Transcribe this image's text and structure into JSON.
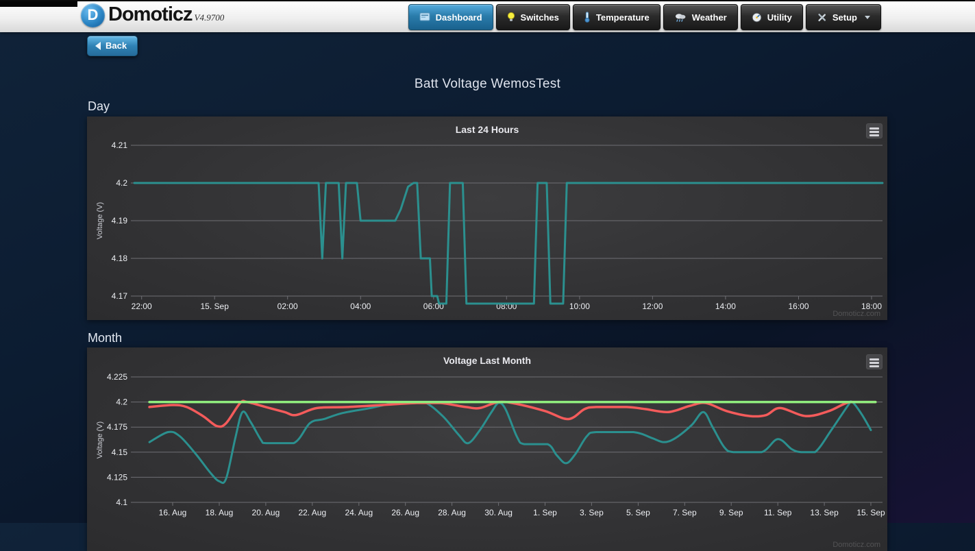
{
  "topbar": {
    "brand": {
      "name": "Domoticz",
      "version": "V4.9700",
      "logo_icon": "domoticz-logo-icon",
      "logo_letter": "D"
    },
    "nav": [
      {
        "label": "Dashboard",
        "icon": "dashboard-icon",
        "active": true
      },
      {
        "label": "Switches",
        "icon": "lightbulb-icon",
        "active": false
      },
      {
        "label": "Temperature",
        "icon": "thermometer-icon",
        "active": false
      },
      {
        "label": "Weather",
        "icon": "rain-cloud-icon",
        "active": false
      },
      {
        "label": "Utility",
        "icon": "gauge-icon",
        "active": false
      },
      {
        "label": "Setup",
        "icon": "tools-icon",
        "active": false,
        "has_dropdown": true,
        "dropdown_icon": "chevron-down-icon"
      }
    ]
  },
  "back_button": {
    "label": "Back",
    "icon": "back-arrow-icon"
  },
  "page_title": "Batt Voltage WemosTest",
  "sections": {
    "day": "Day",
    "month": "Month"
  },
  "colors": {
    "active_tab_blue": "#2a7cab",
    "back_button_blue": "#2f82b4",
    "panel_background": "#323234",
    "gridline": "#6f6f74",
    "teal_series": "#2b908f",
    "red_series": "#f45b5b",
    "green_series": "#90ee7e",
    "page_background_top": "#102339",
    "page_background_bottom": "#171234"
  },
  "chart_data": [
    {
      "id": "day",
      "type": "line",
      "title": "Last 24 Hours",
      "ylabel": "Voltage (V)",
      "watermark": "Domoticz.com",
      "menu_icon": "hamburger-menu-icon",
      "x_unit": "hours (14 Sep 22:00 through 15 Sep 18:00)",
      "xlim": [
        21.8,
        42.3
      ],
      "ylim": [
        4.17,
        4.21
      ],
      "y_ticks": [
        {
          "v": 4.21,
          "label": "4.21"
        },
        {
          "v": 4.2,
          "label": "4.2"
        },
        {
          "v": 4.19,
          "label": "4.19"
        },
        {
          "v": 4.18,
          "label": "4.18"
        },
        {
          "v": 4.17,
          "label": "4.17"
        }
      ],
      "x_ticks": [
        {
          "v": 22,
          "label": "22:00"
        },
        {
          "v": 24,
          "label": "15. Sep"
        },
        {
          "v": 26,
          "label": "02:00"
        },
        {
          "v": 28,
          "label": "04:00"
        },
        {
          "v": 30,
          "label": "06:00"
        },
        {
          "v": 32,
          "label": "08:00"
        },
        {
          "v": 34,
          "label": "10:00"
        },
        {
          "v": 36,
          "label": "12:00"
        },
        {
          "v": 38,
          "label": "14:00"
        },
        {
          "v": 40,
          "label": "16:00"
        },
        {
          "v": 42,
          "label": "18:00"
        }
      ],
      "series": [
        {
          "color": "#2b908f",
          "width": 3,
          "smooth": false,
          "points": [
            [
              21.8,
              4.2
            ],
            [
              26.85,
              4.2
            ],
            [
              26.95,
              4.18
            ],
            [
              27.05,
              4.2
            ],
            [
              27.4,
              4.2
            ],
            [
              27.5,
              4.18
            ],
            [
              27.6,
              4.2
            ],
            [
              27.9,
              4.2
            ],
            [
              28.0,
              4.19
            ],
            [
              28.95,
              4.19
            ],
            [
              29.1,
              4.193
            ],
            [
              29.3,
              4.199
            ],
            [
              29.45,
              4.2
            ],
            [
              29.55,
              4.2
            ],
            [
              29.65,
              4.18
            ],
            [
              29.9,
              4.18
            ],
            [
              29.95,
              4.17
            ],
            [
              30.1,
              4.17
            ],
            [
              30.15,
              4.168
            ],
            [
              30.35,
              4.168
            ],
            [
              30.45,
              4.2
            ],
            [
              30.8,
              4.2
            ],
            [
              30.9,
              4.168
            ],
            [
              32.75,
              4.168
            ],
            [
              32.85,
              4.2
            ],
            [
              33.1,
              4.2
            ],
            [
              33.2,
              4.168
            ],
            [
              33.55,
              4.168
            ],
            [
              33.65,
              4.2
            ],
            [
              42.3,
              4.2
            ]
          ]
        }
      ]
    },
    {
      "id": "month",
      "type": "line",
      "title": "Voltage Last Month",
      "ylabel": "Voltage (V)",
      "watermark": "Domoticz.com",
      "menu_icon": "hamburger-menu-icon",
      "x_unit": "days since 15 Aug (0 = 15 Aug, 31 = 15 Sep)",
      "xlim": [
        -0.65,
        31.5
      ],
      "ylim": [
        4.1,
        4.225
      ],
      "y_ticks": [
        {
          "v": 4.225,
          "label": "4.225"
        },
        {
          "v": 4.2,
          "label": "4.2"
        },
        {
          "v": 4.175,
          "label": "4.175"
        },
        {
          "v": 4.15,
          "label": "4.15"
        },
        {
          "v": 4.125,
          "label": "4.125"
        },
        {
          "v": 4.1,
          "label": "4.1"
        }
      ],
      "x_ticks": [
        {
          "v": 1,
          "label": "16. Aug"
        },
        {
          "v": 3,
          "label": "18. Aug"
        },
        {
          "v": 5,
          "label": "20. Aug"
        },
        {
          "v": 7,
          "label": "22. Aug"
        },
        {
          "v": 9,
          "label": "24. Aug"
        },
        {
          "v": 11,
          "label": "26. Aug"
        },
        {
          "v": 13,
          "label": "28. Aug"
        },
        {
          "v": 15,
          "label": "30. Aug"
        },
        {
          "v": 17,
          "label": "1. Sep"
        },
        {
          "v": 19,
          "label": "3. Sep"
        },
        {
          "v": 21,
          "label": "5. Sep"
        },
        {
          "v": 23,
          "label": "7. Sep"
        },
        {
          "v": 25,
          "label": "9. Sep"
        },
        {
          "v": 27,
          "label": "11. Sep"
        },
        {
          "v": 29,
          "label": "13. Sep"
        },
        {
          "v": 31,
          "label": "15. Sep"
        }
      ],
      "series": [
        {
          "color": "#2b908f",
          "width": 3,
          "smooth": true,
          "points": [
            [
              0,
              4.16
            ],
            [
              0.8,
              4.17
            ],
            [
              1.3,
              4.166
            ],
            [
              2,
              4.148
            ],
            [
              2.6,
              4.13
            ],
            [
              3,
              4.121
            ],
            [
              3.3,
              4.124
            ],
            [
              3.7,
              4.165
            ],
            [
              4,
              4.19
            ],
            [
              4.35,
              4.18
            ],
            [
              4.8,
              4.162
            ],
            [
              5,
              4.159
            ],
            [
              6.2,
              4.159
            ],
            [
              6.9,
              4.179
            ],
            [
              7.5,
              4.183
            ],
            [
              8.3,
              4.189
            ],
            [
              9.5,
              4.194
            ],
            [
              10.5,
              4.199
            ],
            [
              11,
              4.2
            ],
            [
              11.8,
              4.2
            ],
            [
              12.6,
              4.186
            ],
            [
              13.3,
              4.167
            ],
            [
              13.7,
              4.159
            ],
            [
              14.2,
              4.172
            ],
            [
              14.7,
              4.19
            ],
            [
              15,
              4.199
            ],
            [
              15.3,
              4.193
            ],
            [
              15.8,
              4.165
            ],
            [
              16.1,
              4.158
            ],
            [
              17.1,
              4.158
            ],
            [
              17.5,
              4.147
            ],
            [
              17.9,
              4.139
            ],
            [
              18.3,
              4.148
            ],
            [
              18.8,
              4.166
            ],
            [
              19.2,
              4.17
            ],
            [
              20.8,
              4.17
            ],
            [
              21.6,
              4.164
            ],
            [
              22.1,
              4.16
            ],
            [
              22.6,
              4.164
            ],
            [
              23.3,
              4.177
            ],
            [
              23.8,
              4.19
            ],
            [
              24.2,
              4.175
            ],
            [
              24.7,
              4.155
            ],
            [
              25.1,
              4.15
            ],
            [
              26.3,
              4.15
            ],
            [
              27,
              4.163
            ],
            [
              27.6,
              4.153
            ],
            [
              28,
              4.15
            ],
            [
              28.6,
              4.15
            ],
            [
              29.3,
              4.172
            ],
            [
              30,
              4.196
            ],
            [
              30.2,
              4.2
            ],
            [
              30.6,
              4.188
            ],
            [
              31,
              4.172
            ]
          ]
        },
        {
          "color": "#f45b5b",
          "width": 3.5,
          "smooth": true,
          "points": [
            [
              0,
              4.195
            ],
            [
              1,
              4.197
            ],
            [
              1.6,
              4.195
            ],
            [
              2.3,
              4.186
            ],
            [
              2.9,
              4.176
            ],
            [
              3.3,
              4.179
            ],
            [
              3.9,
              4.199
            ],
            [
              4.2,
              4.2
            ],
            [
              5,
              4.195
            ],
            [
              5.8,
              4.19
            ],
            [
              6.3,
              4.187
            ],
            [
              7.2,
              4.194
            ],
            [
              8.5,
              4.195
            ],
            [
              10,
              4.197
            ],
            [
              11.5,
              4.199
            ],
            [
              12.5,
              4.199
            ],
            [
              13.6,
              4.195
            ],
            [
              14.2,
              4.194
            ],
            [
              15,
              4.2
            ],
            [
              15.8,
              4.198
            ],
            [
              17,
              4.191
            ],
            [
              18,
              4.183
            ],
            [
              18.7,
              4.193
            ],
            [
              19.2,
              4.195
            ],
            [
              20.5,
              4.195
            ],
            [
              21.3,
              4.193
            ],
            [
              22.3,
              4.19
            ],
            [
              23.2,
              4.196
            ],
            [
              23.9,
              4.199
            ],
            [
              24.8,
              4.191
            ],
            [
              25.8,
              4.186
            ],
            [
              26.5,
              4.187
            ],
            [
              27.1,
              4.194
            ],
            [
              28.2,
              4.186
            ],
            [
              29.2,
              4.191
            ],
            [
              30.1,
              4.2
            ],
            [
              31.2,
              4.2
            ]
          ]
        },
        {
          "color": "#90ee7e",
          "width": 3.5,
          "smooth": false,
          "points": [
            [
              0,
              4.2
            ],
            [
              31.2,
              4.2
            ]
          ]
        }
      ]
    }
  ]
}
